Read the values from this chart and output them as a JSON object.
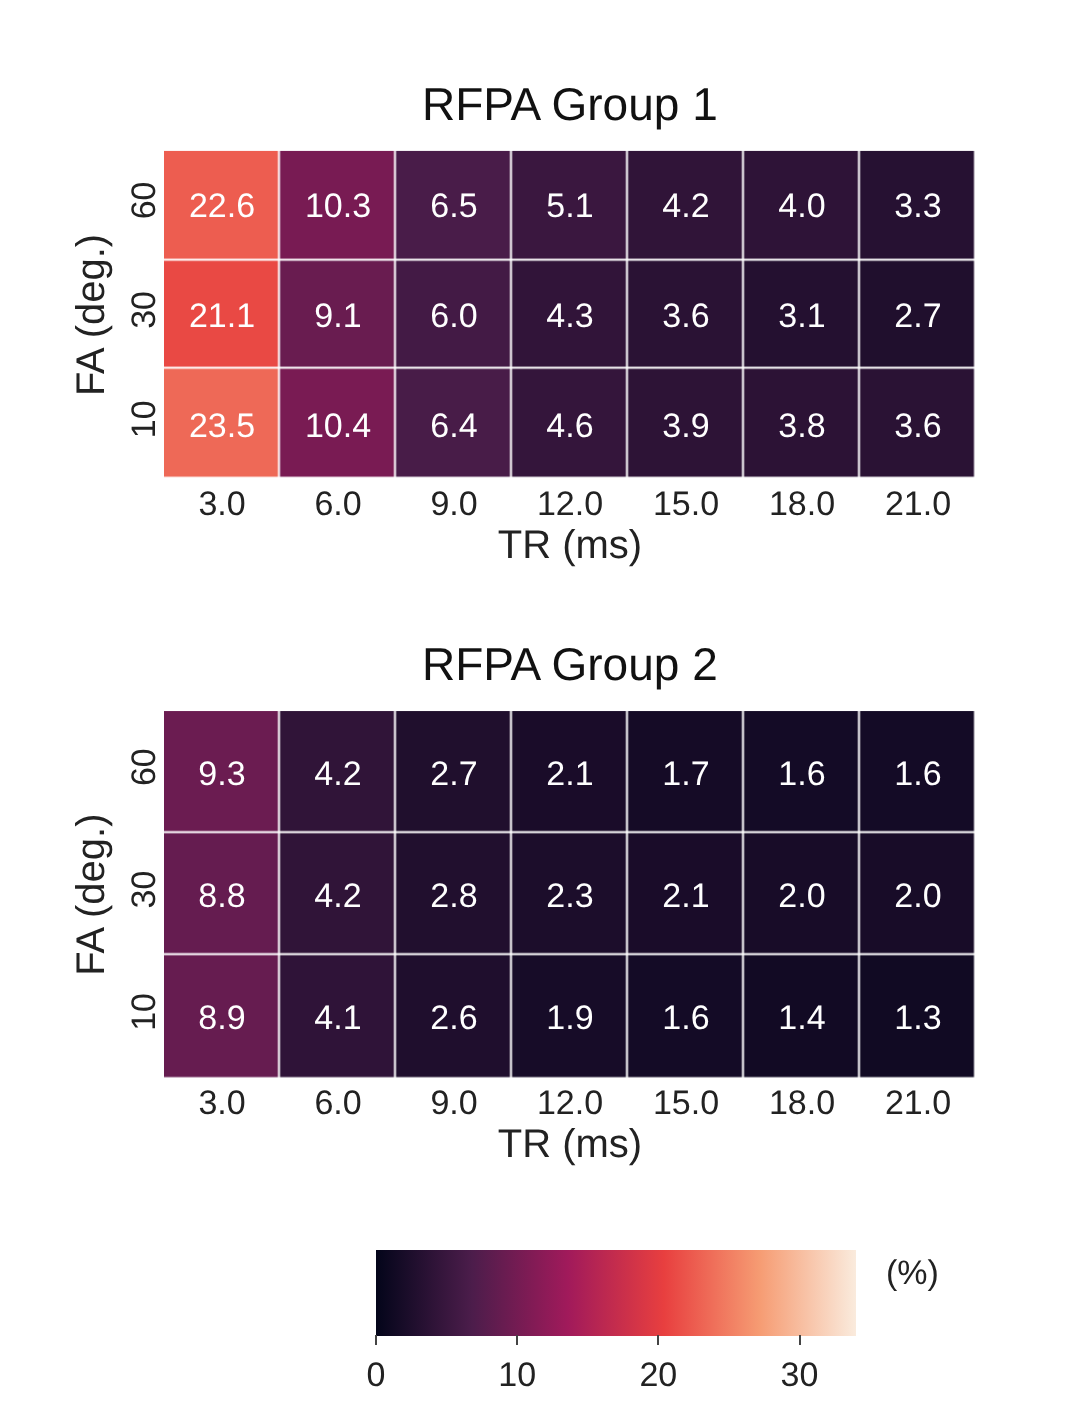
{
  "chart_data": [
    {
      "type": "heatmap",
      "title": "RFPA Group 1",
      "xlabel": "TR (ms)",
      "ylabel": "FA (deg.)",
      "categories": [
        "3.0",
        "6.0",
        "9.0",
        "12.0",
        "15.0",
        "18.0",
        "21.0"
      ],
      "y_categories": [
        "60",
        "30",
        "10"
      ],
      "cells": [
        [
          22.6,
          10.3,
          6.5,
          5.1,
          4.2,
          4.0,
          3.3
        ],
        [
          21.1,
          9.1,
          6.0,
          4.3,
          3.6,
          3.1,
          2.7
        ],
        [
          23.5,
          10.4,
          6.4,
          4.6,
          3.9,
          3.8,
          3.6
        ]
      ],
      "cell_labels": [
        [
          "22.6",
          "10.3",
          "6.5",
          "5.1",
          "4.2",
          "4.0",
          "3.3"
        ],
        [
          "21.1",
          "9.1",
          "6.0",
          "4.3",
          "3.6",
          "3.1",
          "2.7"
        ],
        [
          "23.5",
          "10.4",
          "6.4",
          "4.6",
          "3.9",
          "3.8",
          "3.6"
        ]
      ]
    },
    {
      "type": "heatmap",
      "title": "RFPA Group 2",
      "xlabel": "TR (ms)",
      "ylabel": "FA (deg.)",
      "categories": [
        "3.0",
        "6.0",
        "9.0",
        "12.0",
        "15.0",
        "18.0",
        "21.0"
      ],
      "y_categories": [
        "60",
        "30",
        "10"
      ],
      "cells": [
        [
          9.3,
          4.2,
          2.7,
          2.1,
          1.7,
          1.6,
          1.6
        ],
        [
          8.8,
          4.2,
          2.8,
          2.3,
          2.1,
          2.0,
          2.0
        ],
        [
          8.9,
          4.1,
          2.6,
          1.9,
          1.6,
          1.4,
          1.3
        ]
      ],
      "cell_labels": [
        [
          "9.3",
          "4.2",
          "2.7",
          "2.1",
          "1.7",
          "1.6",
          "1.6"
        ],
        [
          "8.8",
          "4.2",
          "2.8",
          "2.3",
          "2.1",
          "2.0",
          "2.0"
        ],
        [
          "8.9",
          "4.1",
          "2.6",
          "1.9",
          "1.6",
          "1.4",
          "1.3"
        ]
      ],
      "clim": [
        0,
        34
      ],
      "cticks": [
        0,
        10,
        20,
        30
      ],
      "clabel": "(%)"
    }
  ]
}
